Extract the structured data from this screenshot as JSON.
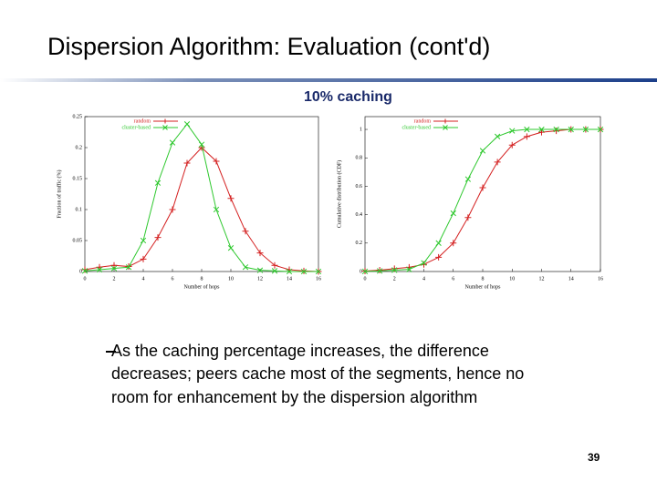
{
  "slide": {
    "title": "Dispersion Algorithm: Evaluation (cont'd)",
    "subtitle": "10% caching",
    "bullet_lines": [
      "As the caching percentage increases, the difference",
      "decreases; peers cache most of the segments, hence no",
      "room for enhancement by the dispersion algorithm"
    ],
    "page_number": "39"
  },
  "chart_data": [
    {
      "type": "line",
      "xlabel": "Number of hops",
      "ylabel": "Fraction of traffic (%)",
      "x": [
        0,
        1,
        2,
        3,
        4,
        5,
        6,
        7,
        8,
        9,
        10,
        11,
        12,
        13,
        14,
        15,
        16
      ],
      "series": [
        {
          "name": "random",
          "color": "#d42020",
          "marker": "plus",
          "values": [
            0.003,
            0.007,
            0.01,
            0.008,
            0.02,
            0.055,
            0.1,
            0.175,
            0.2,
            0.178,
            0.118,
            0.065,
            0.03,
            0.01,
            0.003,
            0.001,
            0
          ]
        },
        {
          "name": "cluster-based",
          "color": "#2ec82e",
          "marker": "cross",
          "values": [
            0.001,
            0.003,
            0.005,
            0.007,
            0.05,
            0.143,
            0.208,
            0.238,
            0.205,
            0.1,
            0.038,
            0.007,
            0.002,
            0.001,
            0,
            0,
            0
          ]
        }
      ],
      "xlim": [
        0,
        16
      ],
      "ylim": [
        0,
        0.25
      ],
      "xticks": [
        0,
        2,
        4,
        6,
        8,
        10,
        12,
        14,
        16
      ],
      "yticks": [
        0,
        0.05,
        0.1,
        0.15,
        0.2,
        0.25
      ],
      "legend": "upper left"
    },
    {
      "type": "line",
      "xlabel": "Number of hops",
      "ylabel": "Cumulative distribution (CDF)",
      "x": [
        0,
        1,
        2,
        3,
        4,
        5,
        6,
        7,
        8,
        9,
        10,
        11,
        12,
        13,
        14,
        15,
        16
      ],
      "series": [
        {
          "name": "random",
          "color": "#d42020",
          "marker": "plus",
          "values": [
            0.003,
            0.01,
            0.02,
            0.03,
            0.05,
            0.1,
            0.2,
            0.38,
            0.59,
            0.77,
            0.89,
            0.95,
            0.98,
            0.99,
            1,
            1,
            1
          ]
        },
        {
          "name": "cluster-based",
          "color": "#2ec82e",
          "marker": "cross",
          "values": [
            0.001,
            0.004,
            0.01,
            0.015,
            0.06,
            0.2,
            0.41,
            0.65,
            0.85,
            0.95,
            0.99,
            1,
            1,
            1,
            1,
            1,
            1
          ]
        }
      ],
      "xlim": [
        0,
        16
      ],
      "ylim": [
        0,
        1.09
      ],
      "xticks": [
        0,
        2,
        4,
        6,
        8,
        10,
        12,
        14,
        16
      ],
      "yticks": [
        0,
        0.2,
        0.4,
        0.6,
        0.8,
        1
      ],
      "legend": "upper left"
    }
  ]
}
